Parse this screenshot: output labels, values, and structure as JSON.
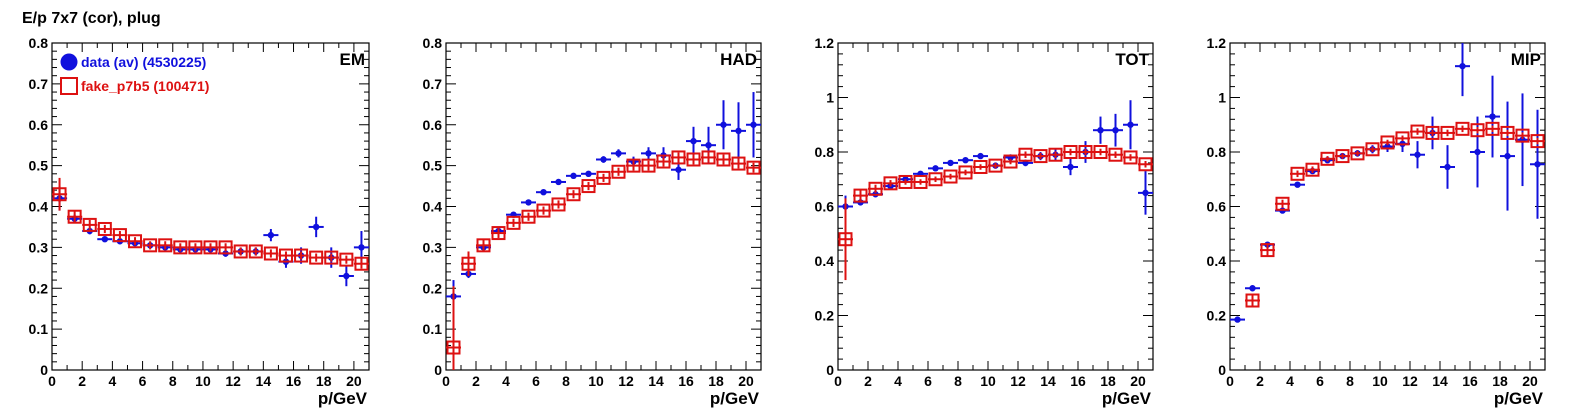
{
  "page": {
    "title": "E/p 7x7 (cor), plug"
  },
  "colors": {
    "data": "#1010dd",
    "fake": "#dd1111"
  },
  "legend": [
    {
      "label": "data (av) (4530225)",
      "color": "#1010dd",
      "marker": "filled-circle"
    },
    {
      "label": "fake_p7b5 (100471)",
      "color": "#dd1111",
      "marker": "open-square"
    }
  ],
  "chart_data": [
    {
      "type": "scatter",
      "title": "EM",
      "xlabel": "p/GeV",
      "ylabel": "",
      "xlim": [
        0,
        21
      ],
      "ylim": [
        0,
        0.8
      ],
      "xticks": [
        "0",
        "2",
        "4",
        "6",
        "8",
        "10",
        "12",
        "14",
        "16",
        "18",
        "20"
      ],
      "yticks": [
        "0",
        "0.1",
        "0.2",
        "0.3",
        "0.4",
        "0.5",
        "0.6",
        "0.7",
        "0.8"
      ],
      "series": [
        {
          "name": "data (av) (4530225)",
          "x": [
            0.5,
            1.5,
            2.5,
            3.5,
            4.5,
            5.5,
            6.5,
            7.5,
            8.5,
            9.5,
            10.5,
            11.5,
            12.5,
            13.5,
            14.5,
            15.5,
            16.5,
            17.5,
            18.5,
            19.5,
            20.5
          ],
          "y": [
            0.42,
            0.37,
            0.34,
            0.32,
            0.315,
            0.31,
            0.305,
            0.3,
            0.295,
            0.295,
            0.295,
            0.285,
            0.29,
            0.29,
            0.33,
            0.265,
            0.28,
            0.35,
            0.275,
            0.23,
            0.3
          ],
          "yerr": [
            0.03,
            0.01,
            0.008,
            0.006,
            0.005,
            0.005,
            0.005,
            0.005,
            0.005,
            0.006,
            0.007,
            0.008,
            0.009,
            0.01,
            0.015,
            0.015,
            0.02,
            0.025,
            0.025,
            0.025,
            0.04
          ]
        },
        {
          "name": "fake_p7b5 (100471)",
          "x": [
            0.5,
            1.5,
            2.5,
            3.5,
            4.5,
            5.5,
            6.5,
            7.5,
            8.5,
            9.5,
            10.5,
            11.5,
            12.5,
            13.5,
            14.5,
            15.5,
            16.5,
            17.5,
            18.5,
            19.5,
            20.5
          ],
          "y": [
            0.43,
            0.375,
            0.355,
            0.345,
            0.33,
            0.315,
            0.305,
            0.305,
            0.3,
            0.3,
            0.3,
            0.3,
            0.29,
            0.29,
            0.285,
            0.28,
            0.28,
            0.275,
            0.275,
            0.27,
            0.26
          ],
          "yerr": [
            0.04,
            0.015,
            0.012,
            0.01,
            0.01,
            0.01,
            0.01,
            0.01,
            0.01,
            0.01,
            0.01,
            0.01,
            0.01,
            0.01,
            0.01,
            0.01,
            0.01,
            0.01,
            0.01,
            0.01,
            0.012
          ]
        }
      ]
    },
    {
      "type": "scatter",
      "title": "HAD",
      "xlabel": "p/GeV",
      "ylabel": "",
      "xlim": [
        0,
        21
      ],
      "ylim": [
        0,
        0.8
      ],
      "xticks": [
        "0",
        "2",
        "4",
        "6",
        "8",
        "10",
        "12",
        "14",
        "16",
        "18",
        "20"
      ],
      "yticks": [
        "0",
        "0.1",
        "0.2",
        "0.3",
        "0.4",
        "0.5",
        "0.6",
        "0.7",
        "0.8"
      ],
      "series": [
        {
          "name": "data (av) (4530225)",
          "x": [
            0.5,
            1.5,
            2.5,
            3.5,
            4.5,
            5.5,
            6.5,
            7.5,
            8.5,
            9.5,
            10.5,
            11.5,
            12.5,
            13.5,
            14.5,
            15.5,
            16.5,
            17.5,
            18.5,
            19.5,
            20.5
          ],
          "y": [
            0.18,
            0.235,
            0.3,
            0.34,
            0.38,
            0.41,
            0.435,
            0.46,
            0.475,
            0.48,
            0.515,
            0.53,
            0.51,
            0.53,
            0.525,
            0.49,
            0.56,
            0.55,
            0.6,
            0.585,
            0.6
          ],
          "yerr": [
            0.04,
            0.01,
            0.008,
            0.006,
            0.005,
            0.005,
            0.005,
            0.005,
            0.006,
            0.007,
            0.008,
            0.01,
            0.012,
            0.015,
            0.02,
            0.025,
            0.035,
            0.045,
            0.06,
            0.07,
            0.08
          ]
        },
        {
          "name": "fake_p7b5 (100471)",
          "x": [
            0.5,
            1.5,
            2.5,
            3.5,
            4.5,
            5.5,
            6.5,
            7.5,
            8.5,
            9.5,
            10.5,
            11.5,
            12.5,
            13.5,
            14.5,
            15.5,
            16.5,
            17.5,
            18.5,
            19.5,
            20.5
          ],
          "y": [
            0.055,
            0.26,
            0.305,
            0.335,
            0.36,
            0.375,
            0.39,
            0.405,
            0.43,
            0.45,
            0.47,
            0.485,
            0.5,
            0.5,
            0.51,
            0.52,
            0.515,
            0.52,
            0.515,
            0.505,
            0.495
          ],
          "yerr": [
            0.15,
            0.03,
            0.015,
            0.012,
            0.01,
            0.01,
            0.01,
            0.01,
            0.01,
            0.01,
            0.01,
            0.01,
            0.012,
            0.012,
            0.012,
            0.012,
            0.012,
            0.012,
            0.012,
            0.012,
            0.012
          ]
        }
      ]
    },
    {
      "type": "scatter",
      "title": "TOT",
      "xlabel": "p/GeV",
      "ylabel": "",
      "xlim": [
        0,
        21
      ],
      "ylim": [
        0,
        1.2
      ],
      "xticks": [
        "0",
        "2",
        "4",
        "6",
        "8",
        "10",
        "12",
        "14",
        "16",
        "18",
        "20"
      ],
      "yticks": [
        "0",
        "0.2",
        "0.4",
        "0.6",
        "0.8",
        "1",
        "1.2"
      ],
      "series": [
        {
          "name": "data (av) (4530225)",
          "x": [
            0.5,
            1.5,
            2.5,
            3.5,
            4.5,
            5.5,
            6.5,
            7.5,
            8.5,
            9.5,
            10.5,
            11.5,
            12.5,
            13.5,
            14.5,
            15.5,
            16.5,
            17.5,
            18.5,
            19.5,
            20.5
          ],
          "y": [
            0.6,
            0.615,
            0.645,
            0.675,
            0.7,
            0.72,
            0.74,
            0.76,
            0.77,
            0.785,
            0.75,
            0.78,
            0.76,
            0.785,
            0.79,
            0.745,
            0.8,
            0.88,
            0.88,
            0.9,
            0.65
          ],
          "yerr": [
            0.04,
            0.01,
            0.008,
            0.006,
            0.005,
            0.005,
            0.005,
            0.005,
            0.006,
            0.007,
            0.008,
            0.01,
            0.012,
            0.015,
            0.02,
            0.03,
            0.04,
            0.05,
            0.06,
            0.09,
            0.08
          ]
        },
        {
          "name": "fake_p7b5 (100471)",
          "x": [
            0.5,
            1.5,
            2.5,
            3.5,
            4.5,
            5.5,
            6.5,
            7.5,
            8.5,
            9.5,
            10.5,
            11.5,
            12.5,
            13.5,
            14.5,
            15.5,
            16.5,
            17.5,
            18.5,
            19.5,
            20.5
          ],
          "y": [
            0.48,
            0.64,
            0.665,
            0.685,
            0.69,
            0.69,
            0.7,
            0.71,
            0.725,
            0.745,
            0.75,
            0.765,
            0.79,
            0.785,
            0.79,
            0.8,
            0.8,
            0.8,
            0.79,
            0.78,
            0.755
          ],
          "yerr": [
            0.15,
            0.02,
            0.015,
            0.012,
            0.01,
            0.01,
            0.01,
            0.01,
            0.01,
            0.01,
            0.01,
            0.01,
            0.012,
            0.012,
            0.012,
            0.012,
            0.012,
            0.012,
            0.012,
            0.012,
            0.012
          ]
        }
      ]
    },
    {
      "type": "scatter",
      "title": "MIP",
      "xlabel": "p/GeV",
      "ylabel": "",
      "xlim": [
        0,
        21
      ],
      "ylim": [
        0,
        1.2
      ],
      "xticks": [
        "0",
        "2",
        "4",
        "6",
        "8",
        "10",
        "12",
        "14",
        "16",
        "18",
        "20"
      ],
      "yticks": [
        "0",
        "0.2",
        "0.4",
        "0.6",
        "0.8",
        "1",
        "1.2"
      ],
      "series": [
        {
          "name": "data (av) (4530225)",
          "x": [
            0.5,
            1.5,
            2.5,
            3.5,
            4.5,
            5.5,
            6.5,
            7.5,
            8.5,
            9.5,
            10.5,
            11.5,
            12.5,
            13.5,
            14.5,
            15.5,
            16.5,
            17.5,
            18.5,
            19.5,
            20.5
          ],
          "y": [
            0.185,
            0.3,
            0.46,
            0.585,
            0.68,
            0.73,
            0.77,
            0.785,
            0.795,
            0.81,
            0.82,
            0.83,
            0.79,
            0.87,
            0.745,
            1.115,
            0.8,
            0.93,
            0.785,
            0.845,
            0.755
          ],
          "yerr": [
            0.01,
            0.01,
            0.01,
            0.01,
            0.008,
            0.008,
            0.01,
            0.01,
            0.012,
            0.015,
            0.02,
            0.03,
            0.05,
            0.06,
            0.08,
            0.11,
            0.13,
            0.15,
            0.2,
            0.17,
            0.2
          ]
        },
        {
          "name": "fake_p7b5 (100471)",
          "x": [
            0.5,
            1.5,
            2.5,
            3.5,
            4.5,
            5.5,
            6.5,
            7.5,
            8.5,
            9.5,
            10.5,
            11.5,
            12.5,
            13.5,
            14.5,
            15.5,
            16.5,
            17.5,
            18.5,
            19.5,
            20.5
          ],
          "y": [
            null,
            0.255,
            0.44,
            0.61,
            0.72,
            0.735,
            0.775,
            0.785,
            0.795,
            0.81,
            0.835,
            0.85,
            0.875,
            0.87,
            0.87,
            0.885,
            0.88,
            0.885,
            0.87,
            0.86,
            0.84
          ],
          "yerr": [
            0,
            0.02,
            0.02,
            0.015,
            0.012,
            0.012,
            0.01,
            0.01,
            0.01,
            0.01,
            0.01,
            0.01,
            0.012,
            0.012,
            0.012,
            0.012,
            0.012,
            0.012,
            0.012,
            0.012,
            0.012
          ]
        }
      ]
    }
  ]
}
